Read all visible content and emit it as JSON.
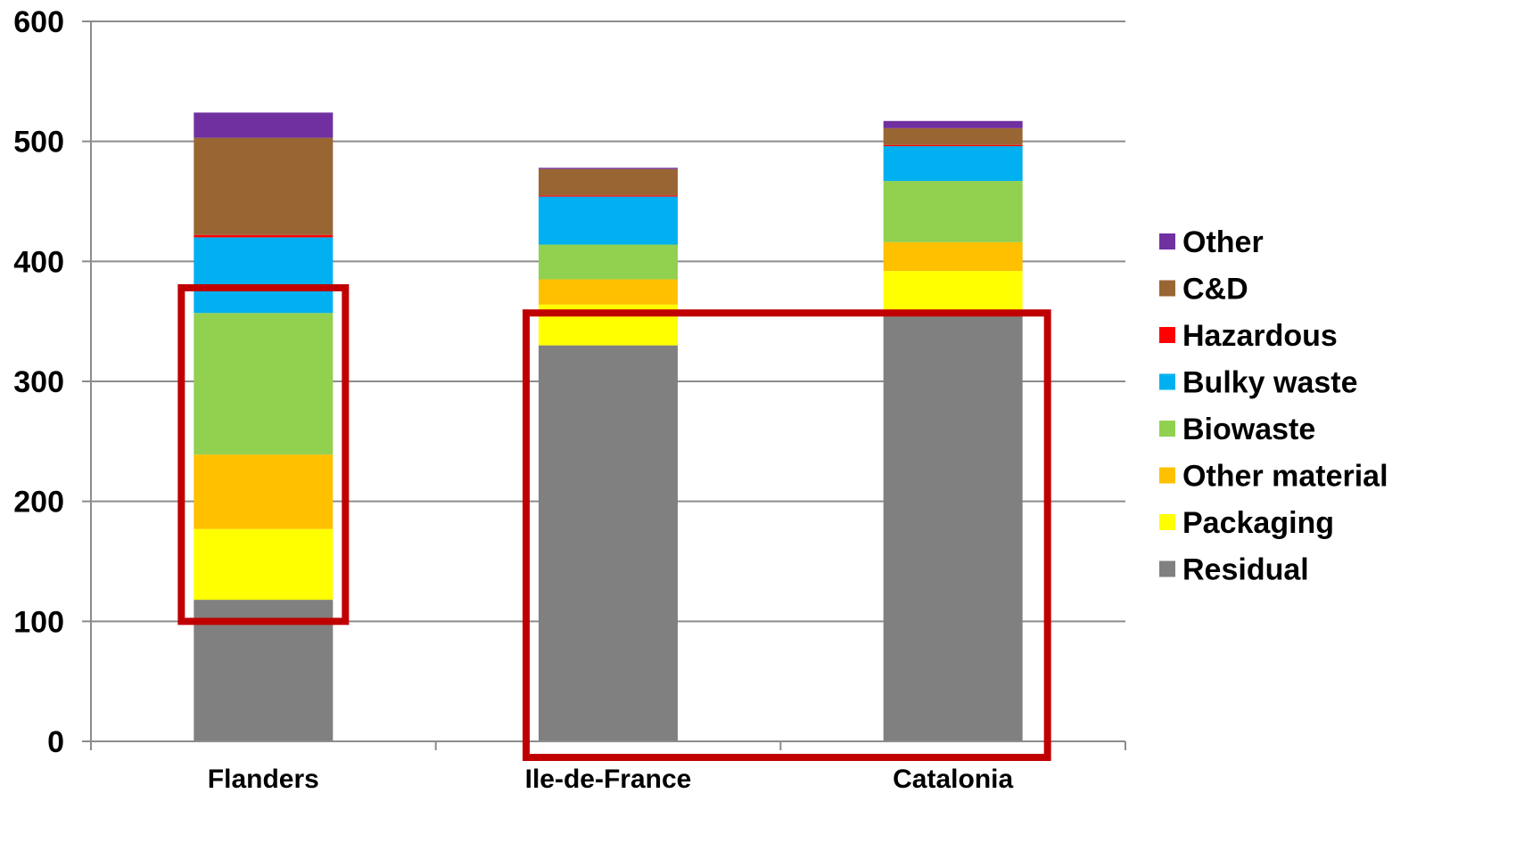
{
  "chart_data": {
    "type": "bar",
    "stacked": true,
    "categories": [
      "Flanders",
      "Ile-de-France",
      "Catalonia"
    ],
    "ylim": [
      0,
      600
    ],
    "yticks": [
      0,
      100,
      200,
      300,
      400,
      500,
      600
    ],
    "grid": true,
    "legend_position": "right",
    "series": [
      {
        "name": "Residual",
        "color": "#808080",
        "values": [
          118,
          330,
          355
        ]
      },
      {
        "name": "Packaging",
        "color": "#ffff00",
        "values": [
          59,
          34,
          37
        ]
      },
      {
        "name": "Other material",
        "color": "#ffc000",
        "values": [
          62,
          21,
          24
        ]
      },
      {
        "name": "Biowaste",
        "color": "#92d050",
        "values": [
          118,
          29,
          51
        ]
      },
      {
        "name": "Bulky waste",
        "color": "#00b0f0",
        "values": [
          63,
          40,
          29
        ]
      },
      {
        "name": "Hazardous",
        "color": "#ff0000",
        "values": [
          2,
          1,
          1
        ]
      },
      {
        "name": "C&D",
        "color": "#996633",
        "values": [
          81,
          22,
          14
        ]
      },
      {
        "name": "Other",
        "color": "#7030a0",
        "values": [
          21,
          1,
          6
        ]
      }
    ],
    "legend_order": [
      "Other",
      "C&D",
      "Hazardous",
      "Bulky waste",
      "Biowaste",
      "Other material",
      "Packaging",
      "Residual"
    ],
    "highlight_boxes": [
      {
        "categories": [
          "Flanders"
        ],
        "from": 100,
        "to": 378,
        "color": "#c00000"
      },
      {
        "categories": [
          "Ile-de-France",
          "Catalonia"
        ],
        "from": 0,
        "to": 357,
        "color": "#c00000"
      }
    ]
  }
}
